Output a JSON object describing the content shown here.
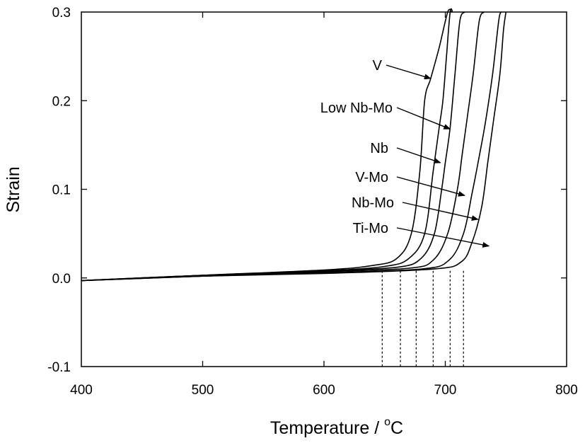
{
  "chart_data": {
    "type": "line",
    "xlabel": "Temperature / ",
    "xlabel_unit_sup": "o",
    "xlabel_unit": "C",
    "ylabel": "Strain",
    "xlim": [
      400,
      800
    ],
    "ylim": [
      -0.1,
      0.3
    ],
    "x_ticks": [
      400,
      500,
      600,
      700,
      800
    ],
    "x_tick_labels": [
      "400",
      "500",
      "600",
      "700",
      "800"
    ],
    "y_ticks": [
      -0.1,
      0.0,
      0.1,
      0.2,
      0.3
    ],
    "y_tick_labels": [
      "-0.1",
      "0.0",
      "0.1",
      "0.2",
      "0.3"
    ],
    "grid": false,
    "series": [
      {
        "name": "V",
        "x": [
          400,
          500,
          600,
          640,
          660,
          672,
          679,
          683,
          688,
          695,
          702,
          705
        ],
        "y": [
          -0.003,
          0.003,
          0.009,
          0.014,
          0.022,
          0.05,
          0.12,
          0.2,
          0.225,
          0.26,
          0.3,
          0.3
        ]
      },
      {
        "name": "Low Nb-Mo",
        "x": [
          400,
          500,
          600,
          650,
          670,
          683,
          690,
          695,
          698,
          701,
          704,
          706
        ],
        "y": [
          -0.003,
          0.003,
          0.008,
          0.013,
          0.022,
          0.05,
          0.12,
          0.17,
          0.2,
          0.25,
          0.3,
          0.3
        ]
      },
      {
        "name": "Nb",
        "x": [
          400,
          500,
          600,
          660,
          680,
          691,
          697,
          700,
          704,
          708,
          712,
          716
        ],
        "y": [
          -0.003,
          0.003,
          0.008,
          0.012,
          0.022,
          0.05,
          0.1,
          0.13,
          0.17,
          0.23,
          0.29,
          0.3
        ]
      },
      {
        "name": "V-Mo",
        "x": [
          400,
          500,
          600,
          670,
          690,
          702,
          710,
          714,
          718,
          723,
          728,
          732
        ],
        "y": [
          -0.003,
          0.002,
          0.007,
          0.011,
          0.02,
          0.05,
          0.1,
          0.14,
          0.18,
          0.23,
          0.29,
          0.3
        ]
      },
      {
        "name": "Nb-Mo",
        "x": [
          400,
          500,
          600,
          680,
          703,
          715,
          722,
          727,
          733,
          739,
          744,
          746
        ],
        "y": [
          -0.003,
          0.002,
          0.006,
          0.01,
          0.02,
          0.05,
          0.095,
          0.13,
          0.175,
          0.23,
          0.29,
          0.3
        ]
      },
      {
        "name": "Ti-Mo",
        "x": [
          400,
          500,
          600,
          690,
          713,
          722,
          730,
          735,
          740,
          745,
          748,
          750
        ],
        "y": [
          -0.003,
          0.002,
          0.005,
          0.01,
          0.018,
          0.04,
          0.08,
          0.13,
          0.18,
          0.23,
          0.28,
          0.3
        ]
      }
    ],
    "transition_temperatures": [
      648,
      663,
      676,
      690,
      704,
      715
    ],
    "annotations": [
      {
        "label": "V",
        "arrow_to": [
          688,
          0.225
        ]
      },
      {
        "label": "Low Nb-Mo",
        "arrow_to": [
          704,
          0.168
        ]
      },
      {
        "label": "Nb",
        "arrow_to": [
          696,
          0.13
        ]
      },
      {
        "label": "V-Mo",
        "arrow_to": [
          716,
          0.093
        ]
      },
      {
        "label": "Nb-Mo",
        "arrow_to": [
          727,
          0.066
        ]
      },
      {
        "label": "Ti-Mo",
        "arrow_to": [
          736,
          0.036
        ]
      }
    ]
  }
}
